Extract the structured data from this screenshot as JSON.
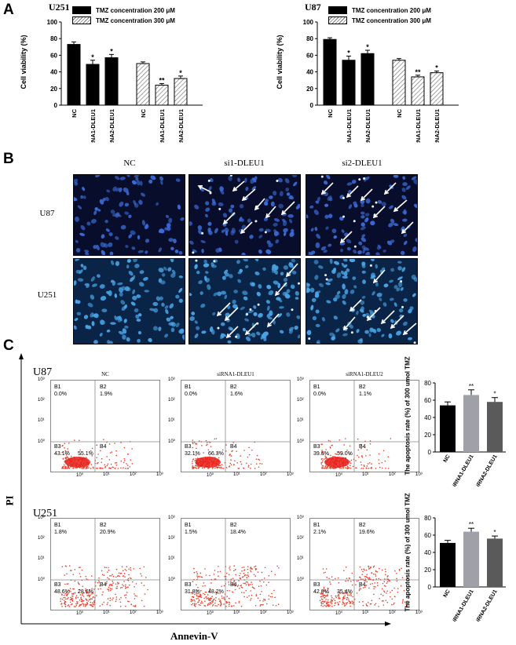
{
  "panels": {
    "a": "A",
    "b": "B",
    "c": "C"
  },
  "panel_a": {
    "legend_solid": "TMZ   concentration 200 μM",
    "legend_hatch": "TMZ   concentration 300 μM",
    "ylabel": "Cell viability (%)"
  },
  "panel_b": {
    "col_labels": [
      "NC",
      "si1-DLEU1",
      "si2-DLEU1"
    ],
    "row_labels": [
      "U87",
      "U251"
    ]
  },
  "panel_c": {
    "cell_labels": [
      "U87",
      "U251"
    ],
    "col_titles": [
      "NC",
      "siRNA1-DLEU1",
      "siRNA1-DLEU2"
    ],
    "quadrant_names": [
      "B1",
      "B2",
      "B3",
      "B4"
    ],
    "quadrants": [
      [
        [
          "0.0%",
          "1.9%",
          "43.1%",
          "55.1%"
        ],
        [
          "0.0%",
          "1.6%",
          "32.1%",
          "66.3%"
        ],
        [
          "0.0%",
          "1.1%",
          "39.8%",
          "59.0%"
        ]
      ],
      [
        [
          "1.8%",
          "20.9%",
          "48.6%",
          "28.6%"
        ],
        [
          "1.5%",
          "18.4%",
          "31.8%",
          "48.2%"
        ],
        [
          "2.1%",
          "19.6%",
          "42.8%",
          "35.4%"
        ]
      ]
    ],
    "y_axis": "PI",
    "x_axis": "Annevin-V",
    "rate_ylabel": "The apoptosis rate (%) of 300 umol TMZ"
  },
  "colors": {
    "dark_bar": "#000000",
    "mid_bar": "#a0a0a8",
    "dark_grey_bar": "#5a5a5a",
    "dots": "#e8402a"
  },
  "chart_data": [
    {
      "type": "bar",
      "title": "U251",
      "categories": [
        "NC",
        "siRNA1-DLEU1",
        "siRNA2-DLEU1",
        "NC",
        "siRNA1-DLEU1",
        "siRNA2-DLEU1"
      ],
      "series": [
        {
          "name": "TMZ concentration 200 μM",
          "values": [
            73,
            49,
            57,
            null,
            null,
            null
          ],
          "errors": [
            3,
            5,
            4,
            null,
            null,
            null
          ]
        },
        {
          "name": "TMZ concentration 300 μM",
          "values": [
            null,
            null,
            null,
            50,
            24,
            32
          ],
          "errors": [
            null,
            null,
            null,
            2,
            2,
            3
          ]
        }
      ],
      "significance": [
        "",
        "*",
        "*",
        "",
        "**",
        "*"
      ],
      "ylabel": "Cell viability (%)",
      "ylim": [
        0,
        100
      ],
      "yticks": [
        0,
        20,
        40,
        60,
        80,
        100
      ]
    },
    {
      "type": "bar",
      "title": "U87",
      "categories": [
        "NC",
        "siRNA1-DLEU1",
        "siRNA2-DLEU1",
        "NC",
        "siRNA1-DLEU1",
        "siRNA2-DLEU1"
      ],
      "series": [
        {
          "name": "TMZ concentration 200 μM",
          "values": [
            79,
            54,
            62,
            null,
            null,
            null
          ],
          "errors": [
            2,
            5,
            4,
            null,
            null,
            null
          ]
        },
        {
          "name": "TMZ concentration 300 μM",
          "values": [
            null,
            null,
            null,
            54,
            34,
            39
          ],
          "errors": [
            null,
            null,
            null,
            2,
            2,
            2
          ]
        }
      ],
      "significance": [
        "",
        "*",
        "*",
        "",
        "**",
        "*"
      ],
      "ylabel": "Cell viability (%)",
      "ylim": [
        0,
        100
      ],
      "yticks": [
        0,
        20,
        40,
        60,
        80,
        100
      ]
    },
    {
      "type": "bar",
      "categories": [
        "NC",
        "siRNA1-DLEU1",
        "siRNA2-DLEU1"
      ],
      "values": [
        54,
        66,
        58
      ],
      "errors": [
        4,
        6,
        5
      ],
      "significance": [
        "",
        "**",
        "*"
      ],
      "ylim": [
        0,
        80
      ],
      "yticks": [
        0,
        20,
        40,
        60,
        80
      ]
    },
    {
      "type": "bar",
      "categories": [
        "NC",
        "siRNA1-DLEU1",
        "siRNA2-DLEU1"
      ],
      "values": [
        51,
        64,
        56
      ],
      "errors": [
        3,
        4,
        3
      ],
      "significance": [
        "",
        "**",
        "*"
      ],
      "ylim": [
        0,
        80
      ],
      "yticks": [
        0,
        20,
        40,
        60,
        80
      ]
    }
  ]
}
